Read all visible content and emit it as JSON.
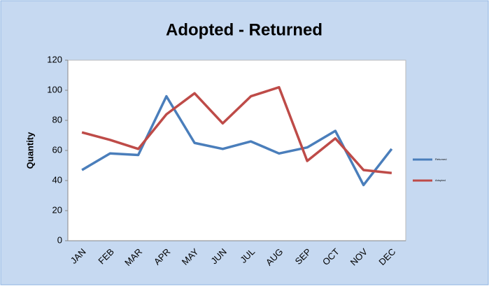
{
  "chart_data": {
    "type": "line",
    "title": "Adopted - Returned",
    "y_label": "Quantity",
    "categories": [
      "JAN",
      "FEB",
      "MAR",
      "APR",
      "MAY",
      "JUN",
      "JUL",
      "AUG",
      "SEP",
      "OCT",
      "NOV",
      "DEC"
    ],
    "series": [
      {
        "name": "Returned",
        "color": "#4a7ebb",
        "values": [
          47,
          58,
          57,
          96,
          65,
          61,
          66,
          58,
          62,
          73,
          37,
          61
        ]
      },
      {
        "name": "Adopted",
        "color": "#be4b48",
        "values": [
          72,
          67,
          61,
          84,
          98,
          78,
          96,
          102,
          53,
          68,
          47,
          45
        ]
      }
    ],
    "ylim": [
      0,
      120
    ],
    "yticks": [
      0,
      20,
      40,
      60,
      80,
      100,
      120
    ],
    "grid": false,
    "legend": "right"
  }
}
